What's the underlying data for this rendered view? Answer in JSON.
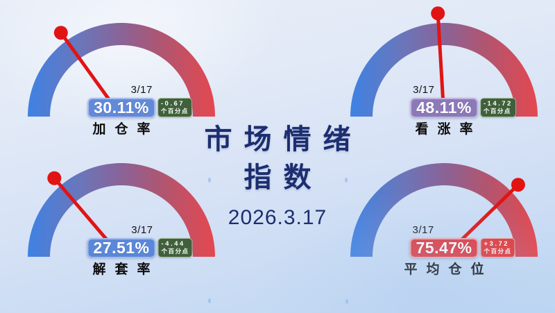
{
  "page": {
    "title_line1": "市场情绪",
    "title_line2": "指数",
    "date": "2026.3.17"
  },
  "colors": {
    "needle_red": "#e11414",
    "title_navy": "#1c2e6f",
    "arc_gradient": [
      "#3f82e3",
      "#6a76bb",
      "#8a6397",
      "#b15570",
      "#e4484f"
    ],
    "change_negative_bg": "#40603b",
    "change_positive_bg": "#e03a3a"
  },
  "gauges": [
    {
      "label": "加仓率",
      "date": "3/17",
      "value": "30.11%",
      "value_pct": 30.11,
      "change_line1": "-0.67",
      "change_line2": "个百分点",
      "change_direction": "down",
      "badge_color": "#6389d8",
      "badge_border": "#a3bcec"
    },
    {
      "label": "看涨率",
      "date": "3/17",
      "value": "48.11%",
      "value_pct": 48.11,
      "change_line1": "-14.72",
      "change_line2": "个百分点",
      "change_direction": "down",
      "badge_color": "#8b79b8",
      "badge_border": "#c2b3dd"
    },
    {
      "label": "解套率",
      "date": "3/17",
      "value": "27.51%",
      "value_pct": 27.51,
      "change_line1": "-4.44",
      "change_line2": "个百分点",
      "change_direction": "down",
      "badge_color": "#5b87d8",
      "badge_border": "#a3bcec"
    },
    {
      "label": "平均仓位",
      "date": "3/17",
      "value": "75.47%",
      "value_pct": 75.47,
      "change_line1": "+3.72",
      "change_line2": "个百分点",
      "change_direction": "up",
      "badge_color": "#e0393f",
      "badge_border": "#f0a7ab"
    }
  ],
  "chart_data": [
    {
      "type": "gauge",
      "title": "加仓率",
      "value": 30.11,
      "unit": "%",
      "range": [
        0,
        100
      ],
      "date_label": "3/17",
      "change": -0.67,
      "change_unit": "个百分点"
    },
    {
      "type": "gauge",
      "title": "看涨率",
      "value": 48.11,
      "unit": "%",
      "range": [
        0,
        100
      ],
      "date_label": "3/17",
      "change": -14.72,
      "change_unit": "个百分点"
    },
    {
      "type": "gauge",
      "title": "解套率",
      "value": 27.51,
      "unit": "%",
      "range": [
        0,
        100
      ],
      "date_label": "3/17",
      "change": -4.44,
      "change_unit": "个百分点"
    },
    {
      "type": "gauge",
      "title": "平均仓位",
      "value": 75.47,
      "unit": "%",
      "range": [
        0,
        100
      ],
      "date_label": "3/17",
      "change": 3.72,
      "change_unit": "个百分点"
    }
  ]
}
